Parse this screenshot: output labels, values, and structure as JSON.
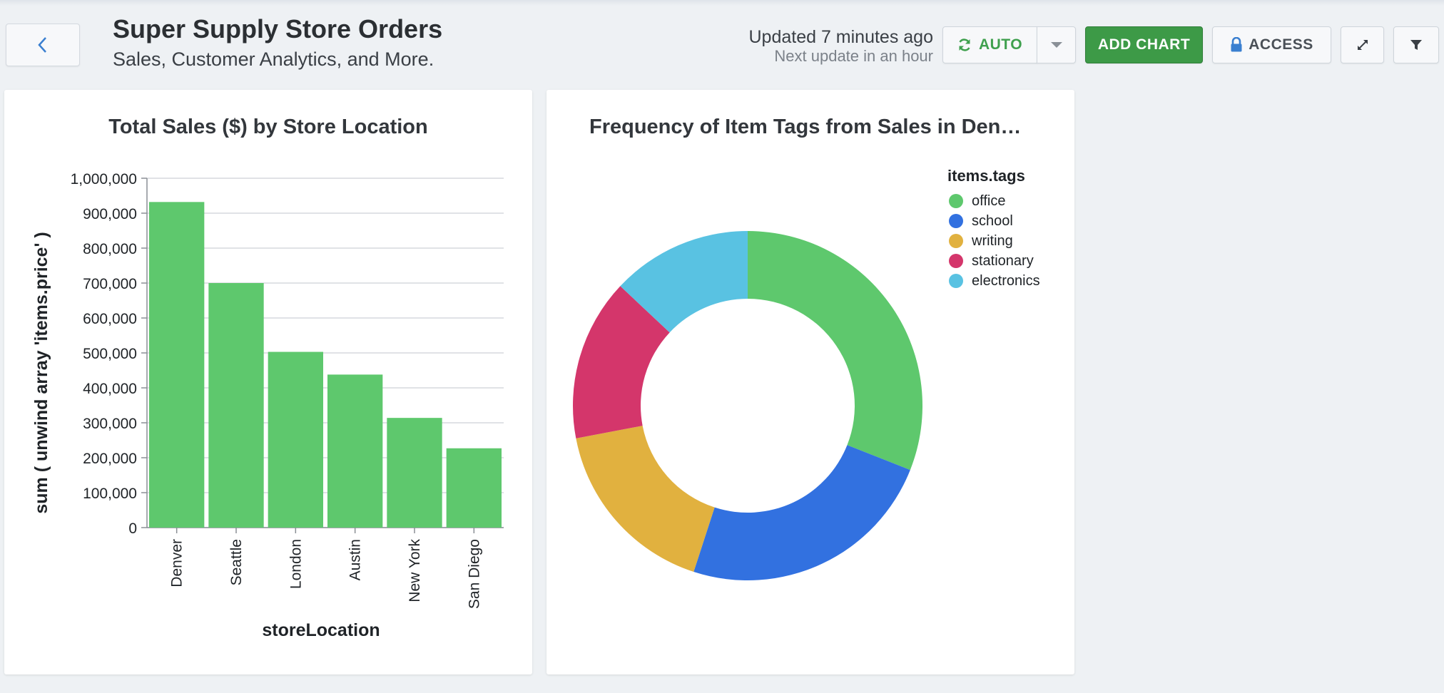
{
  "header": {
    "title": "Super Supply Store Orders",
    "subtitle": "Sales, Customer Analytics, and More.",
    "updated": "Updated 7 minutes ago",
    "next_update": "Next update in an hour",
    "auto_label": "AUTO",
    "add_chart_label": "ADD CHART",
    "access_label": "ACCESS"
  },
  "colors": {
    "primary_green": "#3d9a47",
    "bar_green": "#5ec86d",
    "office": "#5ec86d",
    "school": "#3271e0",
    "writing": "#e1b13f",
    "stationary": "#d4366b",
    "electronics": "#59c2e2"
  },
  "icons": [
    "back-chevron-icon",
    "refresh-icon",
    "caret-down-icon",
    "lock-icon",
    "expand-icon",
    "filter-icon"
  ],
  "chart_data": [
    {
      "type": "bar",
      "title": "Total Sales ($) by Store Location",
      "xlabel": "storeLocation",
      "ylabel": "sum ( unwind array 'items.price' )",
      "categories": [
        "Denver",
        "Seattle",
        "London",
        "Austin",
        "New York",
        "San Diego"
      ],
      "values": [
        932000,
        700000,
        503000,
        438000,
        314000,
        227000
      ],
      "ylim": [
        0,
        1000000
      ],
      "yticks": [
        "0",
        "100,000",
        "200,000",
        "300,000",
        "400,000",
        "500,000",
        "600,000",
        "700,000",
        "800,000",
        "900,000",
        "1,000,000"
      ],
      "grid": true
    },
    {
      "type": "pie",
      "style": "donut",
      "title": "Frequency of Item Tags from Sales in Denv…",
      "legend_title": "items.tags",
      "legend_position": "top-right",
      "categories": [
        "office",
        "school",
        "writing",
        "stationary",
        "electronics"
      ],
      "values": [
        31,
        24,
        17,
        15,
        13
      ]
    }
  ]
}
